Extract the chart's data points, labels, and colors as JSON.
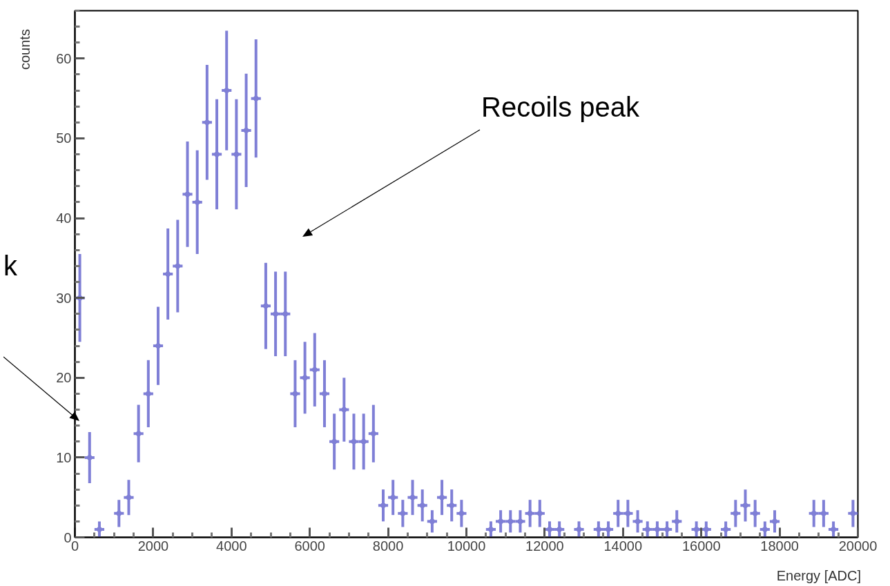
{
  "chart_data": {
    "type": "scatter",
    "xlabel": "Energy [ADC]",
    "ylabel": "counts",
    "x": [
      125,
      375,
      625,
      875,
      1125,
      1375,
      1625,
      1875,
      2125,
      2375,
      2625,
      2875,
      3125,
      3375,
      3625,
      3875,
      4125,
      4375,
      4625,
      4875,
      5125,
      5375,
      5625,
      5875,
      6125,
      6375,
      6625,
      6875,
      7125,
      7375,
      7625,
      7875,
      8125,
      8375,
      8625,
      8875,
      9125,
      9375,
      9625,
      9875,
      10125,
      10375,
      10625,
      10875,
      11125,
      11375,
      11625,
      11875,
      12125,
      12375,
      12625,
      12875,
      13125,
      13375,
      13625,
      13875,
      14125,
      14375,
      14625,
      14875,
      15125,
      15375,
      15625,
      15875,
      16125,
      16375,
      16625,
      16875,
      17125,
      17375,
      17625,
      17875,
      18125,
      18375,
      18625,
      18875,
      19125,
      19375,
      19625,
      19875
    ],
    "values": [
      30,
      10,
      1,
      null,
      3,
      5,
      13,
      18,
      24,
      33,
      34,
      43,
      42,
      52,
      48,
      56,
      48,
      51,
      55,
      29,
      28,
      28,
      18,
      20,
      21,
      18,
      12,
      16,
      12,
      12,
      13,
      4,
      5,
      3,
      5,
      4,
      2,
      5,
      4,
      3,
      null,
      null,
      1,
      2,
      2,
      2,
      3,
      3,
      1,
      1,
      null,
      1,
      null,
      1,
      1,
      3,
      3,
      2,
      1,
      1,
      1,
      2,
      null,
      1,
      1,
      null,
      1,
      3,
      4,
      3,
      1,
      2,
      null,
      null,
      null,
      3,
      3,
      1,
      null,
      3
    ],
    "errors": [
      5.5,
      3.2,
      1,
      null,
      1.7,
      2.2,
      3.6,
      4.2,
      4.9,
      5.7,
      5.8,
      6.6,
      6.5,
      7.2,
      6.9,
      7.5,
      6.9,
      7.1,
      7.4,
      5.4,
      5.3,
      5.3,
      4.2,
      4.5,
      4.6,
      4.2,
      3.5,
      4,
      3.5,
      3.5,
      3.6,
      2,
      2.2,
      1.7,
      2.2,
      2,
      1.4,
      2.2,
      2,
      1.7,
      null,
      null,
      1,
      1.4,
      1.4,
      1.4,
      1.7,
      1.7,
      1,
      1,
      null,
      1,
      null,
      1,
      1,
      1.7,
      1.7,
      1.4,
      1,
      1,
      1,
      1.4,
      null,
      1,
      1,
      null,
      1,
      1.7,
      2,
      1.7,
      1,
      1.4,
      null,
      null,
      null,
      1.7,
      1.7,
      1,
      null,
      1.7
    ],
    "xerrors": [
      125,
      125,
      125,
      null,
      125,
      125,
      125,
      125,
      125,
      125,
      125,
      125,
      125,
      125,
      125,
      125,
      125,
      125,
      125,
      125,
      125,
      125,
      125,
      125,
      125,
      125,
      125,
      125,
      125,
      125,
      125,
      125,
      125,
      125,
      125,
      125,
      125,
      125,
      125,
      125,
      null,
      null,
      125,
      125,
      125,
      125,
      125,
      125,
      125,
      125,
      null,
      125,
      null,
      125,
      125,
      125,
      125,
      125,
      125,
      125,
      125,
      125,
      null,
      125,
      125,
      null,
      125,
      125,
      125,
      125,
      125,
      125,
      null,
      null,
      null,
      125,
      125,
      125,
      null,
      125
    ],
    "color": "#7f7fd6",
    "marker": "circle",
    "xlim": [
      0,
      20000
    ],
    "xticks": [
      0,
      2000,
      4000,
      6000,
      8000,
      10000,
      12000,
      14000,
      16000,
      18000,
      20000
    ],
    "ylim": [
      0,
      66
    ],
    "yticks": [
      0,
      10,
      20,
      30,
      40,
      50,
      60
    ],
    "grid": false,
    "annotations": [
      "Recoils peak",
      "k"
    ]
  }
}
